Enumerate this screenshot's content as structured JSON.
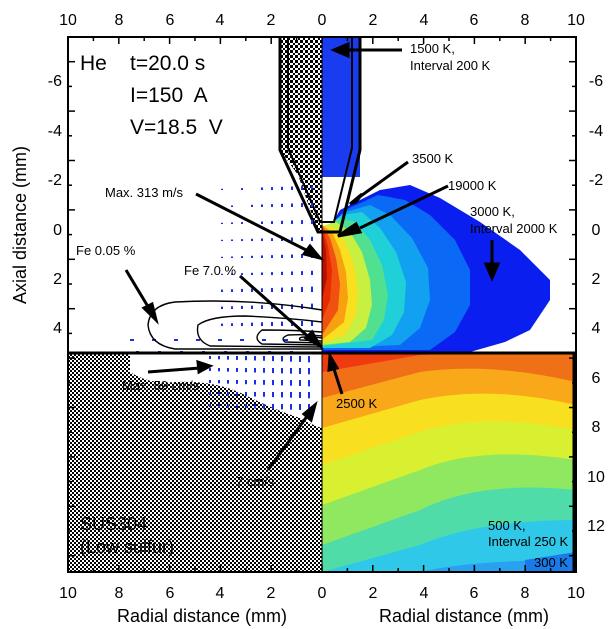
{
  "ticks": {
    "radial_left": [
      "10",
      "8",
      "6",
      "4",
      "2",
      "0"
    ],
    "radial_right": [
      "0",
      "2",
      "4",
      "6",
      "8",
      "10"
    ],
    "axial_upper": [
      "-6",
      "-4",
      "-2",
      "0",
      "2",
      "4"
    ],
    "axial_lower": [
      "6",
      "8",
      "10",
      "12"
    ]
  },
  "axis_labels": {
    "y": "Axial distance (mm)",
    "x_left": "Radial distance (mm)",
    "x_right": "Radial distance (mm)"
  },
  "conditions": {
    "gas": "He",
    "time": "t=20.0 s",
    "current": "I=150  A",
    "voltage": "V=18.5  V"
  },
  "material": {
    "name": "SUS304",
    "note": "(Low sulfur)"
  },
  "annotations": {
    "temp_1500_line1": "1500 K,",
    "temp_1500_line2": "Interval 200 K",
    "temp_3500": "3500 K",
    "temp_19000": "19000 K",
    "temp_3000_line1": "3000 K,",
    "temp_3000_line2": "Interval 2000 K",
    "max_gas_velocity": "Max. 313 m/s",
    "fe_low": "Fe 0.05 %",
    "fe_high": "Fe 7.0 %",
    "temp_2500": "2500 K",
    "max_pool_velocity": "Max. 59 cm/s",
    "ref_velocity": "7 cm/s",
    "temp_500_line1": "500 K,",
    "temp_500_line2": "Interval 250 K",
    "temp_300": "300 K"
  },
  "colors": {
    "arc_outer": "#0a1ef0",
    "arc_hot": "#d42a00",
    "pool_hot": "#f03a10",
    "pool_cold": "#2aa0f0",
    "vectors": "#1a2ee8",
    "frame": "#000000"
  }
}
